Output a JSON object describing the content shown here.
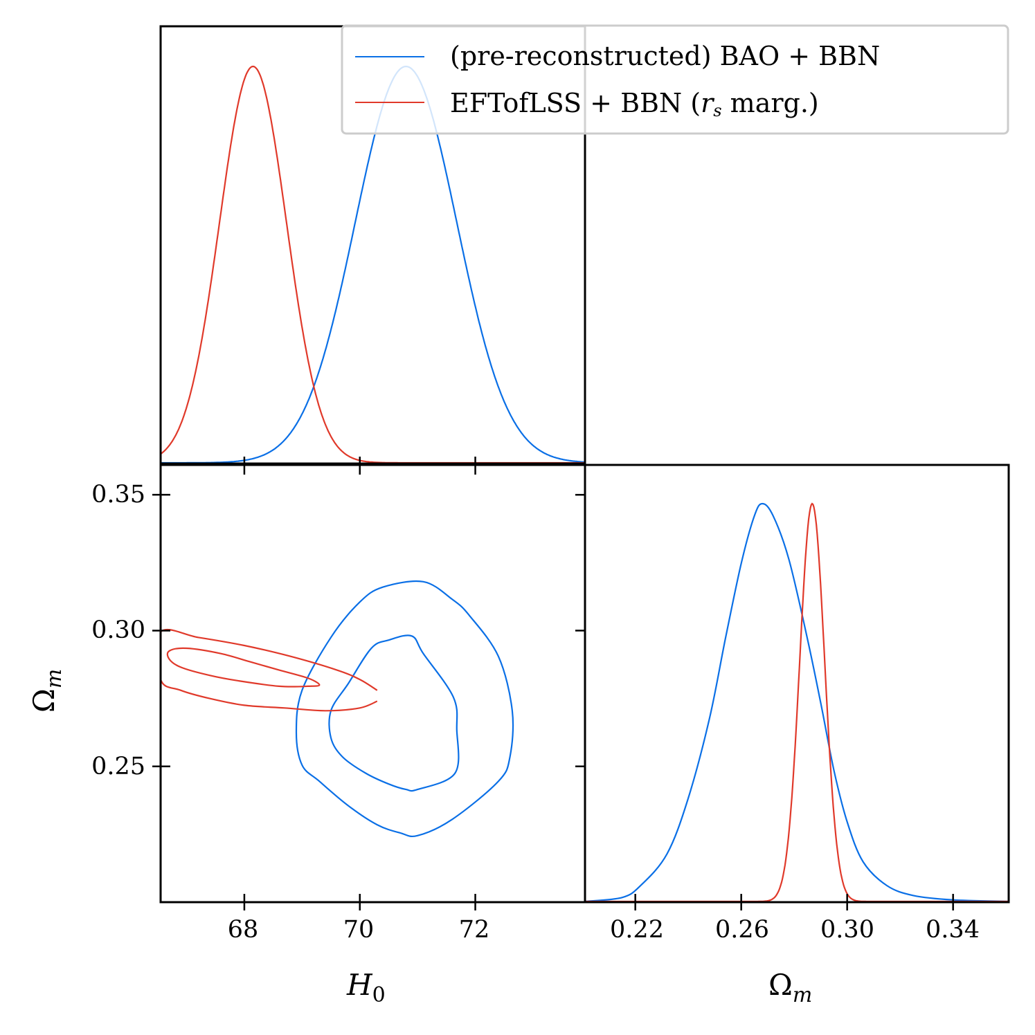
{
  "colors": {
    "blue": "#0a6fe6",
    "red": "#e0392a",
    "axes": "#000000",
    "legend_edge": "#cccccc"
  },
  "legend": {
    "entries": [
      {
        "series": "blue",
        "label": "(pre-reconstructed) BAO + BBN"
      },
      {
        "series": "red",
        "label_pre": "EFTofLSS + BBN (",
        "label_sym": "r",
        "label_sub": "s",
        "label_post": " marg.)"
      }
    ]
  },
  "chart_data": {
    "type": "triangle corner plot",
    "parameters": [
      "H0",
      "Omega_m"
    ],
    "x_labels": {
      "H0": "H",
      "H0_sub": "0",
      "Om": "Ω",
      "Om_sub": "m"
    },
    "y_label": {
      "text": "Ω",
      "sub": "m"
    },
    "H0_ticks": [
      "68",
      "70",
      "72"
    ],
    "H0_tick_values": [
      68,
      70,
      72
    ],
    "H0_range": [
      66.55,
      73.9
    ],
    "Om_ticks_x": [
      "0.22",
      "0.26",
      "0.30",
      "0.34"
    ],
    "Om_tick_values_x": [
      0.22,
      0.26,
      0.3,
      0.34
    ],
    "Om_range_x": [
      0.201,
      0.361
    ],
    "Om_ticks_y": [
      "0.35",
      "0.30",
      "0.25"
    ],
    "Om_tick_values_y": [
      0.35,
      0.3,
      0.25
    ],
    "Om_range_y": [
      0.2,
      0.361
    ],
    "series": [
      {
        "key": "blue",
        "H0_posterior": {
          "mean": 70.8,
          "sigma": 0.88
        },
        "Om_posterior": [
          [
            0.201,
            0.0
          ],
          [
            0.215,
            0.01
          ],
          [
            0.222,
            0.04
          ],
          [
            0.232,
            0.12
          ],
          [
            0.24,
            0.26
          ],
          [
            0.248,
            0.46
          ],
          [
            0.254,
            0.66
          ],
          [
            0.26,
            0.85
          ],
          [
            0.265,
            0.97
          ],
          [
            0.268,
            1.0
          ],
          [
            0.272,
            0.97
          ],
          [
            0.278,
            0.86
          ],
          [
            0.285,
            0.66
          ],
          [
            0.29,
            0.5
          ],
          [
            0.295,
            0.33
          ],
          [
            0.3,
            0.2
          ],
          [
            0.306,
            0.1
          ],
          [
            0.315,
            0.04
          ],
          [
            0.325,
            0.015
          ],
          [
            0.34,
            0.004
          ],
          [
            0.361,
            0.0
          ]
        ],
        "contour_68": [
          [
            71.0,
            0.2415
          ],
          [
            71.65,
            0.2475
          ],
          [
            71.68,
            0.2635
          ],
          [
            71.62,
            0.2755
          ],
          [
            71.1,
            0.2915
          ],
          [
            70.9,
            0.298
          ],
          [
            70.5,
            0.2965
          ],
          [
            70.2,
            0.2935
          ],
          [
            69.8,
            0.2805
          ],
          [
            69.5,
            0.2705
          ],
          [
            69.5,
            0.2605
          ],
          [
            69.7,
            0.2535
          ],
          [
            70.1,
            0.2475
          ],
          [
            70.5,
            0.2435
          ],
          [
            70.8,
            0.2415
          ]
        ],
        "contour_95": [
          [
            71.0,
            0.2245
          ],
          [
            71.6,
            0.2305
          ],
          [
            72.4,
            0.2445
          ],
          [
            72.6,
            0.2535
          ],
          [
            72.64,
            0.2705
          ],
          [
            72.4,
            0.2905
          ],
          [
            71.9,
            0.3055
          ],
          [
            71.6,
            0.3115
          ],
          [
            71.1,
            0.318
          ],
          [
            70.4,
            0.316
          ],
          [
            70.0,
            0.3105
          ],
          [
            69.5,
            0.2975
          ],
          [
            69.0,
            0.278
          ],
          [
            68.9,
            0.2625
          ],
          [
            69.0,
            0.2505
          ],
          [
            69.3,
            0.2445
          ],
          [
            69.8,
            0.2355
          ],
          [
            70.3,
            0.2285
          ],
          [
            70.7,
            0.2255
          ]
        ]
      },
      {
        "key": "red",
        "H0_posterior": {
          "mean": 68.15,
          "sigma": 0.58
        },
        "Om_posterior": {
          "mean": 0.2868,
          "sigma": 0.0047
        },
        "contour_68": [
          [
            69.3,
            0.28
          ],
          [
            69.1,
            0.2825
          ],
          [
            68.6,
            0.2855
          ],
          [
            68.1,
            0.2885
          ],
          [
            67.6,
            0.2915
          ],
          [
            67.0,
            0.2935
          ],
          [
            66.7,
            0.2925
          ],
          [
            66.7,
            0.2895
          ],
          [
            66.9,
            0.2865
          ],
          [
            67.4,
            0.2835
          ],
          [
            67.9,
            0.2815
          ],
          [
            68.6,
            0.2795
          ],
          [
            69.1,
            0.2795
          ]
        ],
        "contour_95": [
          [
            70.3,
            0.278
          ],
          [
            70.0,
            0.282
          ],
          [
            69.6,
            0.2855
          ],
          [
            68.8,
            0.2905
          ],
          [
            68.0,
            0.2945
          ],
          [
            67.2,
            0.2975
          ],
          [
            66.55,
            0.2995
          ],
          [
            66.55,
            0.282
          ],
          [
            66.9,
            0.278
          ],
          [
            67.4,
            0.275
          ],
          [
            68.0,
            0.2725
          ],
          [
            68.7,
            0.2715
          ],
          [
            69.4,
            0.2705
          ],
          [
            70.0,
            0.2715
          ],
          [
            70.3,
            0.274
          ]
        ]
      }
    ]
  }
}
